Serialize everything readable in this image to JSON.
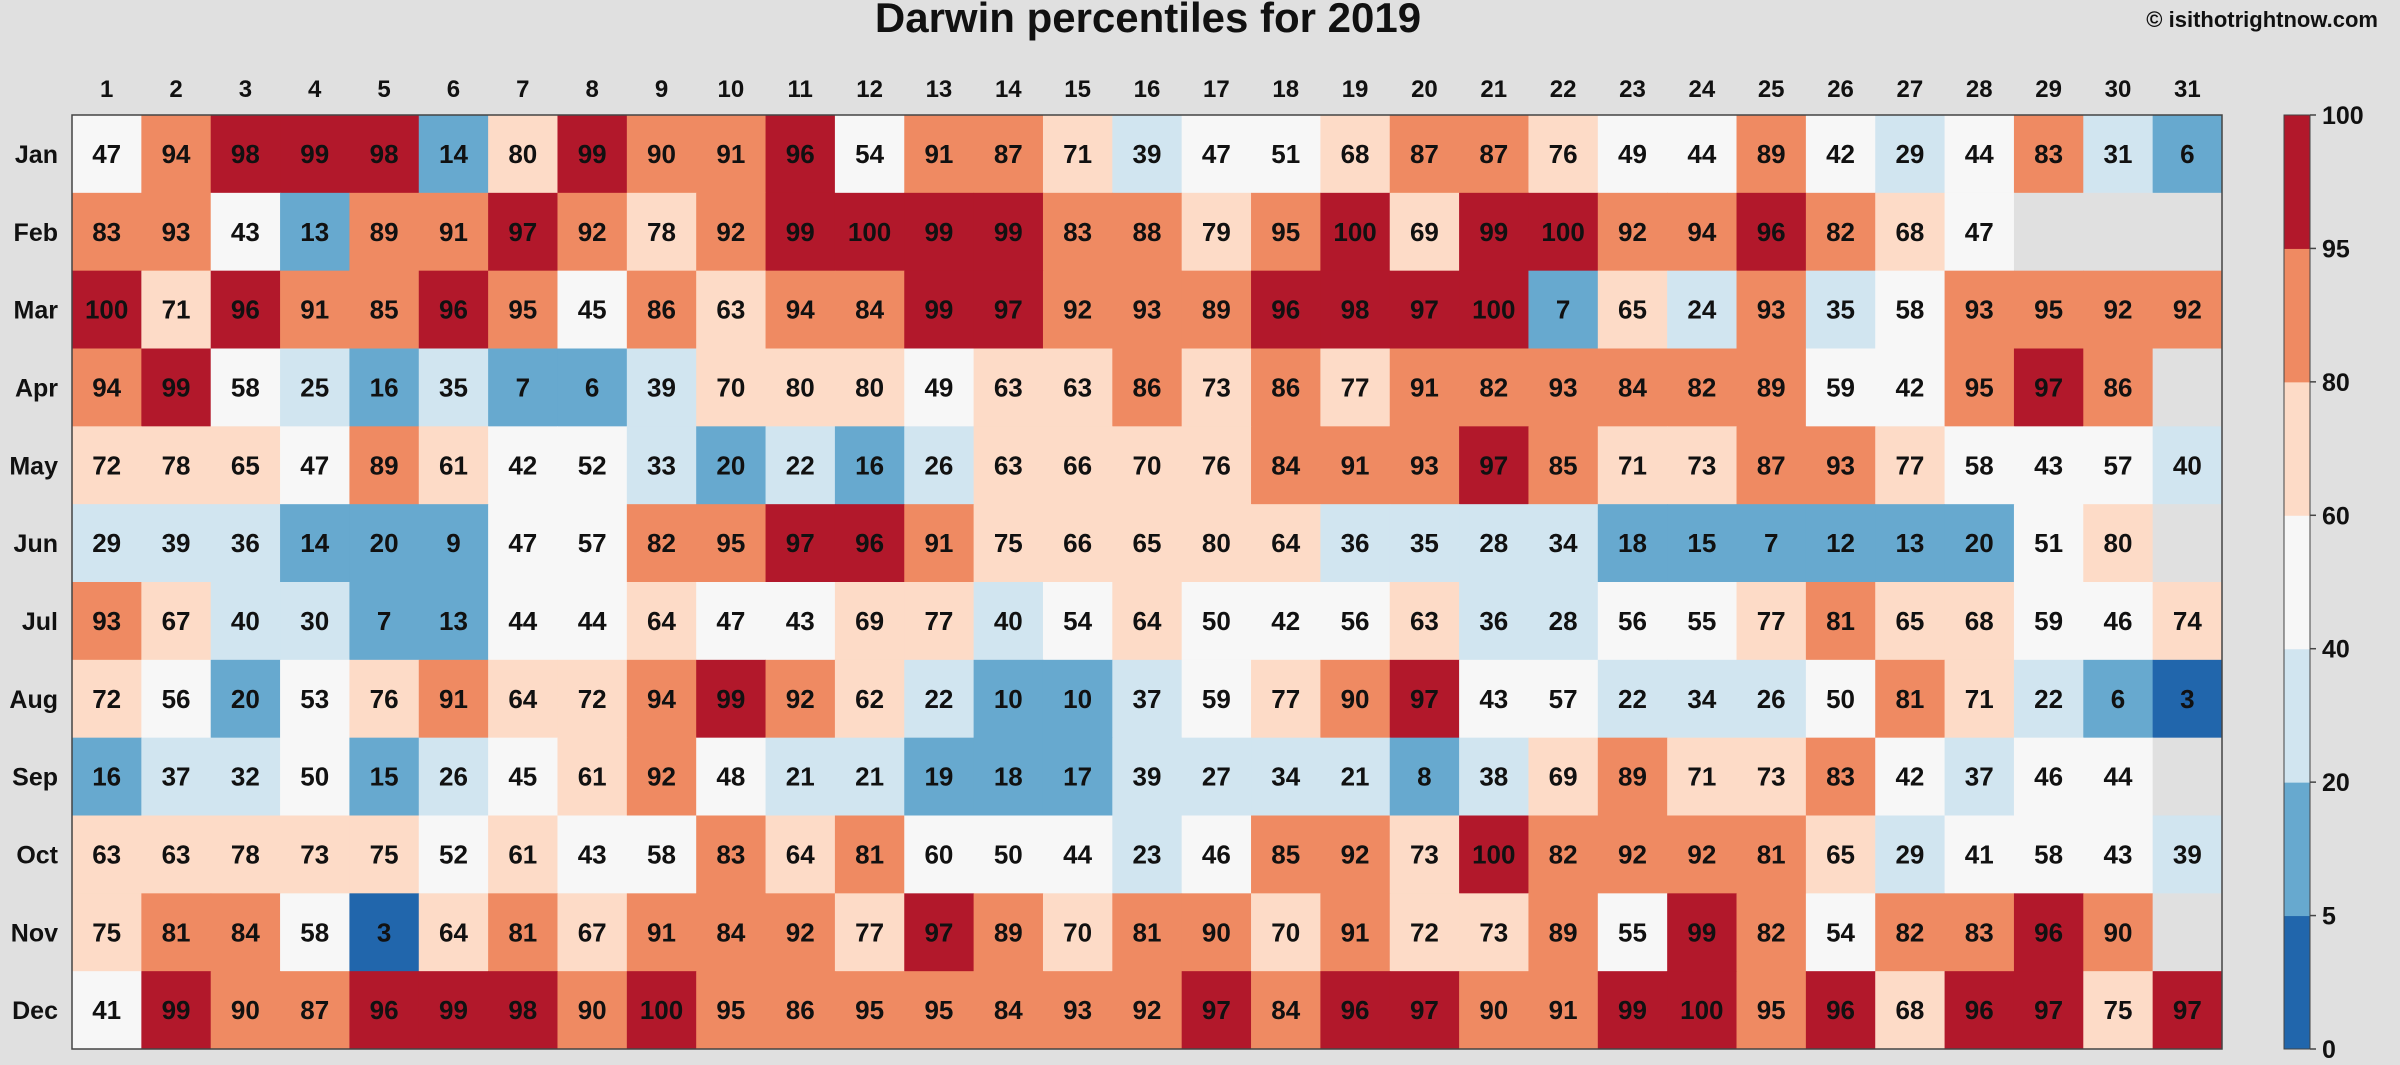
{
  "chart_data": {
    "type": "heatmap",
    "title": "Darwin percentiles for 2019",
    "credit": "© isithotrightnow.com",
    "x_labels": [
      "1",
      "2",
      "3",
      "4",
      "5",
      "6",
      "7",
      "8",
      "9",
      "10",
      "11",
      "12",
      "13",
      "14",
      "15",
      "16",
      "17",
      "18",
      "19",
      "20",
      "21",
      "22",
      "23",
      "24",
      "25",
      "26",
      "27",
      "28",
      "29",
      "30",
      "31"
    ],
    "y_labels": [
      "Jan",
      "Feb",
      "Mar",
      "Apr",
      "May",
      "Jun",
      "Jul",
      "Aug",
      "Sep",
      "Oct",
      "Nov",
      "Dec"
    ],
    "values": [
      [
        47,
        94,
        98,
        99,
        98,
        14,
        80,
        99,
        90,
        91,
        96,
        54,
        91,
        87,
        71,
        39,
        47,
        51,
        68,
        87,
        87,
        76,
        49,
        44,
        89,
        42,
        29,
        44,
        83,
        31,
        6
      ],
      [
        83,
        93,
        43,
        13,
        89,
        91,
        97,
        92,
        78,
        92,
        99,
        100,
        99,
        99,
        83,
        88,
        79,
        95,
        100,
        69,
        99,
        100,
        92,
        94,
        96,
        82,
        68,
        47,
        null,
        null,
        null
      ],
      [
        100,
        71,
        96,
        91,
        85,
        96,
        95,
        45,
        86,
        63,
        94,
        84,
        99,
        97,
        92,
        93,
        89,
        96,
        98,
        97,
        100,
        7,
        65,
        24,
        93,
        35,
        58,
        93,
        95,
        92,
        92
      ],
      [
        94,
        99,
        58,
        25,
        16,
        35,
        7,
        6,
        39,
        70,
        80,
        80,
        49,
        63,
        63,
        86,
        73,
        86,
        77,
        91,
        82,
        93,
        84,
        82,
        89,
        59,
        42,
        95,
        97,
        86,
        null
      ],
      [
        72,
        78,
        65,
        47,
        89,
        61,
        42,
        52,
        33,
        20,
        22,
        16,
        26,
        63,
        66,
        70,
        76,
        84,
        91,
        93,
        97,
        85,
        71,
        73,
        87,
        93,
        77,
        58,
        43,
        57,
        40
      ],
      [
        29,
        39,
        36,
        14,
        20,
        9,
        47,
        57,
        82,
        95,
        97,
        96,
        91,
        75,
        66,
        65,
        80,
        64,
        36,
        35,
        28,
        34,
        18,
        15,
        7,
        12,
        13,
        20,
        51,
        80,
        null
      ],
      [
        93,
        67,
        40,
        30,
        7,
        13,
        44,
        44,
        64,
        47,
        43,
        69,
        77,
        40,
        54,
        64,
        50,
        42,
        56,
        63,
        36,
        28,
        56,
        55,
        77,
        81,
        65,
        68,
        59,
        46,
        74
      ],
      [
        72,
        56,
        20,
        53,
        76,
        91,
        64,
        72,
        94,
        99,
        92,
        62,
        22,
        10,
        10,
        37,
        59,
        77,
        90,
        97,
        43,
        57,
        22,
        34,
        26,
        50,
        81,
        71,
        22,
        6,
        3
      ],
      [
        16,
        37,
        32,
        50,
        15,
        26,
        45,
        61,
        92,
        48,
        21,
        21,
        19,
        18,
        17,
        39,
        27,
        34,
        21,
        8,
        38,
        69,
        89,
        71,
        73,
        83,
        42,
        37,
        46,
        44,
        null
      ],
      [
        63,
        63,
        78,
        73,
        75,
        52,
        61,
        43,
        58,
        83,
        64,
        81,
        60,
        50,
        44,
        23,
        46,
        85,
        92,
        73,
        100,
        82,
        92,
        92,
        81,
        65,
        29,
        41,
        58,
        43,
        39
      ],
      [
        75,
        81,
        84,
        58,
        3,
        64,
        81,
        67,
        91,
        84,
        92,
        77,
        97,
        89,
        70,
        81,
        90,
        70,
        91,
        72,
        73,
        89,
        55,
        99,
        82,
        54,
        82,
        83,
        96,
        90,
        null
      ],
      [
        41,
        99,
        90,
        87,
        96,
        99,
        98,
        90,
        100,
        95,
        86,
        95,
        95,
        84,
        93,
        92,
        97,
        84,
        96,
        97,
        90,
        91,
        99,
        100,
        95,
        96,
        68,
        96,
        97,
        75,
        97
      ]
    ],
    "colorbar": {
      "ticks": [
        "0",
        "5",
        "20",
        "40",
        "60",
        "80",
        "95",
        "100"
      ],
      "bins": [
        {
          "min": 0,
          "max": 5,
          "color": "#2166ac"
        },
        {
          "min": 5,
          "max": 20,
          "color": "#67a9cf"
        },
        {
          "min": 20,
          "max": 40,
          "color": "#d1e5f0"
        },
        {
          "min": 40,
          "max": 60,
          "color": "#f7f7f7"
        },
        {
          "min": 60,
          "max": 80,
          "color": "#fddbc7"
        },
        {
          "min": 80,
          "max": 95,
          "color": "#ef8a62"
        },
        {
          "min": 95,
          "max": 100,
          "color": "#b2182b"
        }
      ]
    },
    "missing_color": "#e0e0e0"
  }
}
